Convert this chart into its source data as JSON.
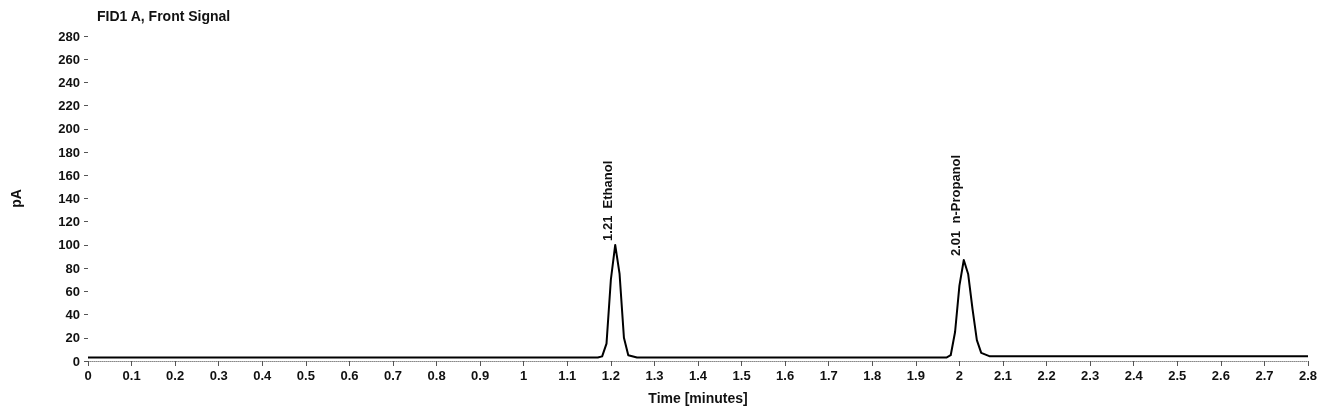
{
  "chart_data": {
    "type": "line",
    "title": "FID1 A, Front Signal",
    "xlabel": "Time [minutes]",
    "ylabel": "pA",
    "x": [
      0,
      0.5,
      1.0,
      1.17,
      1.18,
      1.19,
      1.2,
      1.21,
      1.22,
      1.23,
      1.24,
      1.26,
      1.5,
      1.8,
      1.97,
      1.98,
      1.99,
      2.0,
      2.01,
      2.02,
      2.03,
      2.04,
      2.05,
      2.07,
      2.4,
      2.8
    ],
    "series": [
      {
        "color": "#000000",
        "values": [
          3,
          3,
          3,
          3,
          4,
          15,
          70,
          100,
          75,
          20,
          5,
          3,
          3,
          3,
          3,
          5,
          25,
          65,
          87,
          75,
          45,
          18,
          7,
          4,
          4,
          4
        ]
      }
    ],
    "xlim": [
      0,
      2.8
    ],
    "xticks": [
      0,
      0.1,
      0.2,
      0.3,
      0.4,
      0.5,
      0.6,
      0.7,
      0.8,
      0.9,
      1,
      1.1,
      1.2,
      1.3,
      1.4,
      1.5,
      1.6,
      1.7,
      1.8,
      1.9,
      2,
      2.1,
      2.2,
      2.3,
      2.4,
      2.5,
      2.6,
      2.7,
      2.8
    ],
    "ylim": [
      0,
      280
    ],
    "yticks": [
      0,
      20,
      40,
      60,
      80,
      100,
      120,
      140,
      160,
      180,
      200,
      220,
      240,
      260,
      280
    ],
    "annotations": [
      {
        "text": "1.21  Ethanol",
        "x": 1.21,
        "y": 100
      },
      {
        "text": "2.01  n-Propanol",
        "x": 2.01,
        "y": 87
      }
    ],
    "grid": false,
    "marker": "none",
    "line_style": "solid"
  }
}
